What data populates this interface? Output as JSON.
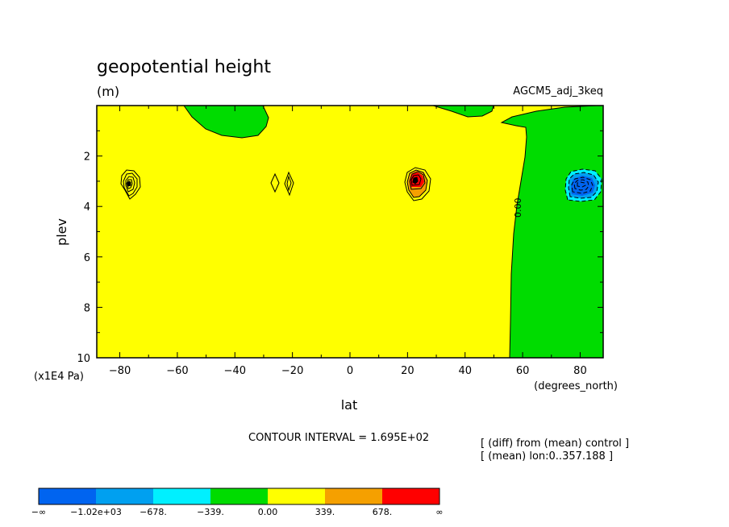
{
  "chart_data": {
    "type": "contour",
    "title": "geopotential height",
    "units": "(m)",
    "dataset": "AGCM5_adj_3keq",
    "xlabel": "lat",
    "xunits": "(degrees_north)",
    "ylabel": "plev",
    "yunits": "(x1E4 Pa)",
    "xlim": [
      -88,
      88
    ],
    "ylim": [
      10,
      0
    ],
    "x_ticks": [
      -80,
      -60,
      -40,
      -20,
      0,
      20,
      40,
      60,
      80
    ],
    "x_tick_labels": [
      "−80",
      "−60",
      "−40",
      "−20",
      "0",
      "20",
      "40",
      "60",
      "80"
    ],
    "y_ticks": [
      2,
      4,
      6,
      8,
      10
    ],
    "y_tick_labels": [
      "2",
      "4",
      "6",
      "8",
      "10"
    ],
    "contour_interval_text": "CONTOUR INTERVAL = 1.695E+02",
    "contour_label": "0.00",
    "notes": [
      "[ (diff) from (mean) control ]",
      "[ (mean) lon:0..357.188 ]"
    ],
    "colorbar": {
      "colors": [
        "#0064f0",
        "#00a0f0",
        "#00f0ff",
        "#00dc00",
        "#ffff00",
        "#f5a000",
        "#ff0000"
      ],
      "labels": [
        "−∞",
        "−1.02e+03",
        "−678.",
        "−339.",
        "0.00",
        "339.",
        "678.",
        "∞"
      ]
    },
    "features": [
      {
        "kind": "positive-max",
        "lat": -77,
        "plev": 3.1
      },
      {
        "kind": "small-closed",
        "lat": -26,
        "plev": 3.0
      },
      {
        "kind": "small-closed",
        "lat": -21,
        "plev": 3.0
      },
      {
        "kind": "positive-max",
        "lat": 23,
        "plev": 3.1
      },
      {
        "kind": "negative-min",
        "lat": 81,
        "plev": 3.2
      }
    ]
  }
}
